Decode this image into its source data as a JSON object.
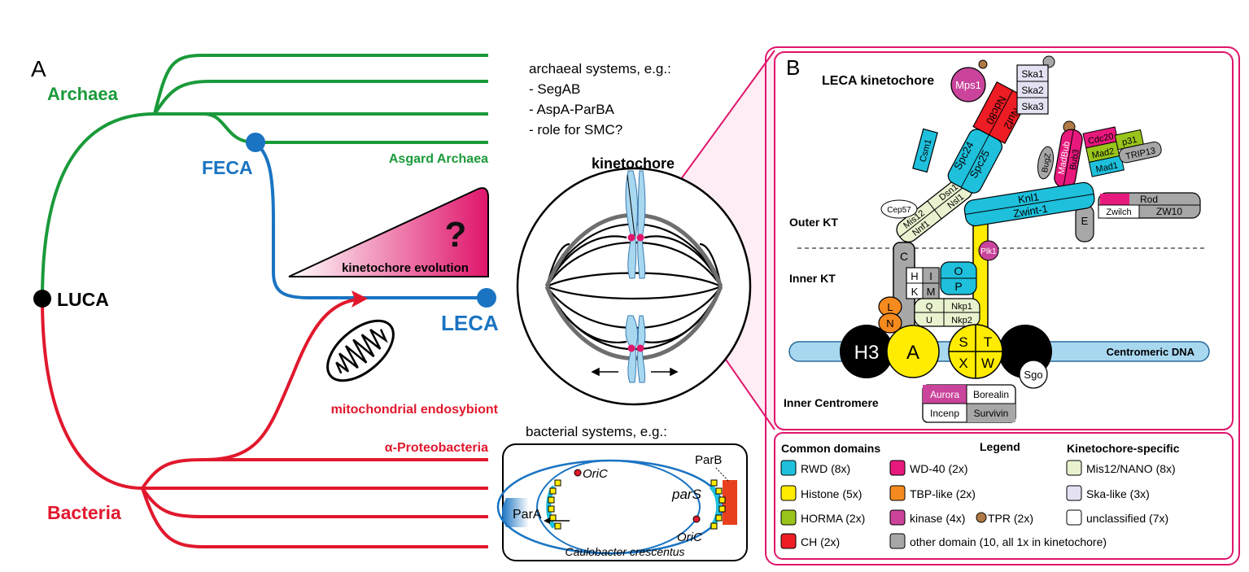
{
  "colors": {
    "archaea": "#1a9a3a",
    "bacteria": "#e1182d",
    "eukarya": "#1a74c2",
    "magenta": "#e0156b",
    "rwd": "#1ec0dc",
    "histone": "#ffec00",
    "horma": "#99c41c",
    "ch": "#ee1c24",
    "wd40": "#e8197d",
    "tbp": "#f58a1f",
    "kinase": "#c9449a",
    "tpr": "#b07a47",
    "other": "#a7a7a7",
    "mis12": "#e9f2cf",
    "ska": "#e4e2f2",
    "unclassified": "#ffffff"
  },
  "panel_a": {
    "letter": "A",
    "archaea": "Archaea",
    "feca": "FECA",
    "asgard": "Asgard Archaea",
    "luca": "LUCA",
    "leca": "LECA",
    "bacteria": "Bacteria",
    "alpha": "α-Proteobacteria",
    "mito": "mitochondrial endosybiont",
    "kt_evolution": "kinetochore evolution",
    "question": "?",
    "archaeal_title": "archaeal systems, e.g.:",
    "archaeal_items": [
      "- SegAB",
      "- AspA-ParBA",
      "- role for SMC?"
    ],
    "kinetochore": "kinetochore",
    "bacterial_title": "bacterial systems, e.g.:",
    "parA": "ParA",
    "parB": "ParB",
    "parS": "parS",
    "oriC_top": "OriC",
    "oriC_bottom": "OriC",
    "caulobacter": "Caulobacter crescentus"
  },
  "panel_b": {
    "letter": "B",
    "title": "LECA kinetochore",
    "outer_kt": "Outer KT",
    "inner_kt": "Inner KT",
    "inner_centromere": "Inner Centromere",
    "centromeric_dna": "Centromeric DNA",
    "proteins": {
      "mps1": "Mps1",
      "ska1": "Ska1",
      "ska2": "Ska2",
      "ska3": "Ska3",
      "ndc80": "Ndc80",
      "nuf2": "Nuf2",
      "spc24": "Spc24",
      "spc25": "Spc25",
      "csm1": "Csm1",
      "cdc20": "Cdc20",
      "bub1": "Bub1",
      "madbub": "MadBub",
      "bub3": "Bub3",
      "bugz": "BugZ",
      "mad2": "Mad2",
      "p31": "p31",
      "trip13": "TRIP13",
      "mad1": "Mad1",
      "rod": "Rod",
      "zwilch": "Zwilch",
      "zw10": "ZW10",
      "knl1": "Knl1",
      "zwint1": "Zwint-1",
      "cep57": "Cep57",
      "mis12": "Mis12",
      "dsn1": "Dsn1",
      "nsl1": "Nsl1",
      "nnf1": "Nnf1",
      "e": "E",
      "c": "C",
      "plk1": "Plk1",
      "h": "H",
      "i": "I",
      "k": "K",
      "m": "M",
      "o": "O",
      "p": "P",
      "l": "L",
      "n": "N",
      "q": "Q",
      "nkp1": "Nkp1",
      "u": "U",
      "nkp2": "Nkp2",
      "h3": "H3",
      "a": "A",
      "s": "S",
      "t": "T",
      "x": "X",
      "w": "W",
      "sgo": "Sgo",
      "aurora": "Aurora",
      "borealin": "Borealin",
      "incenp": "Incenp",
      "survivin": "Survivin"
    }
  },
  "legend": {
    "common_domains": "Common domains",
    "legend": "Legend",
    "kt_specific": "Kinetochore-specific",
    "rwd": "RWD (8x)",
    "histone": "Histone (5x)",
    "horma": "HORMA (2x)",
    "ch": "CH (2x)",
    "wd40": "WD-40 (2x)",
    "tbp": "TBP-like (2x)",
    "kinase": "kinase (4x)",
    "tpr": "TPR (2x)",
    "other": "other domain (10, all 1x in kinetochore)",
    "mis12": "Mis12/NANO (8x)",
    "ska": "Ska-like (3x)",
    "unclassified": "unclassified (7x)"
  }
}
